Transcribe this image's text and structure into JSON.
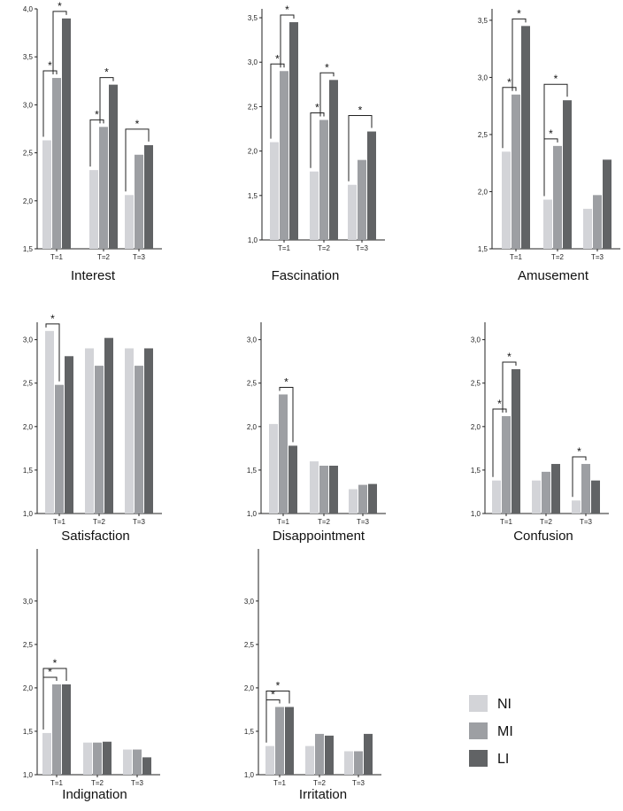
{
  "colors": {
    "NI": "#d3d4d8",
    "MI": "#9d9fa3",
    "LI": "#616365"
  },
  "chart_data": [
    {
      "type": "bar",
      "title": "Interest",
      "categories": [
        "T=1",
        "T=2",
        "T=3"
      ],
      "ylim": [
        1.5,
        4.0
      ],
      "ytick_values": [
        1.5,
        2.0,
        2.5,
        3.0,
        3.5,
        4.0
      ],
      "ytick_labels": [
        "1,5",
        "2,0",
        "2,5",
        "3,0",
        "3,5",
        "4,0"
      ],
      "series": [
        {
          "name": "NI",
          "values": [
            2.63,
            2.32,
            2.06
          ]
        },
        {
          "name": "MI",
          "values": [
            3.28,
            2.77,
            2.48
          ]
        },
        {
          "name": "LI",
          "values": [
            3.9,
            3.21,
            2.58
          ]
        }
      ],
      "significance": [
        {
          "group": 0,
          "from": 0,
          "to": 1,
          "label": "*"
        },
        {
          "group": 0,
          "from": 1,
          "to": 2,
          "label": "*"
        },
        {
          "group": 1,
          "from": 0,
          "to": 1,
          "label": "*"
        },
        {
          "group": 1,
          "from": 1,
          "to": 2,
          "label": "*"
        },
        {
          "group": 2,
          "from": 0,
          "to": 2,
          "label": "*"
        }
      ]
    },
    {
      "type": "bar",
      "title": "Fascination",
      "categories": [
        "T=1",
        "T=2",
        "T=3"
      ],
      "ylim": [
        1.0,
        3.6
      ],
      "ytick_values": [
        1.0,
        1.5,
        2.0,
        2.5,
        3.0,
        3.5
      ],
      "ytick_labels": [
        "1,0",
        "1,5",
        "2,0",
        "2,5",
        "3,0",
        "3,5"
      ],
      "series": [
        {
          "name": "NI",
          "values": [
            2.1,
            1.77,
            1.62
          ]
        },
        {
          "name": "MI",
          "values": [
            2.9,
            2.35,
            1.9
          ]
        },
        {
          "name": "LI",
          "values": [
            3.45,
            2.8,
            2.22
          ]
        }
      ],
      "significance": [
        {
          "group": 0,
          "from": 0,
          "to": 1,
          "label": "*"
        },
        {
          "group": 0,
          "from": 1,
          "to": 2,
          "label": "*"
        },
        {
          "group": 1,
          "from": 0,
          "to": 1,
          "label": "*"
        },
        {
          "group": 1,
          "from": 1,
          "to": 2,
          "label": "*"
        },
        {
          "group": 2,
          "from": 0,
          "to": 2,
          "label": "*"
        }
      ]
    },
    {
      "type": "bar",
      "title": "Amusement",
      "categories": [
        "T=1",
        "T=2",
        "T=3"
      ],
      "ylim": [
        1.5,
        3.6
      ],
      "ytick_values": [
        1.5,
        2.0,
        2.5,
        3.0,
        3.5
      ],
      "ytick_labels": [
        "1,5",
        "2,0",
        "2,5",
        "3,0",
        "3,5"
      ],
      "series": [
        {
          "name": "NI",
          "values": [
            2.35,
            1.93,
            1.85
          ]
        },
        {
          "name": "MI",
          "values": [
            2.85,
            2.4,
            1.97
          ]
        },
        {
          "name": "LI",
          "values": [
            3.45,
            2.8,
            2.28
          ]
        }
      ],
      "significance": [
        {
          "group": 0,
          "from": 0,
          "to": 1,
          "label": "*"
        },
        {
          "group": 0,
          "from": 1,
          "to": 2,
          "label": "*"
        },
        {
          "group": 1,
          "from": 0,
          "to": 1,
          "label": "*"
        },
        {
          "group": 1,
          "from": 0,
          "to": 2,
          "label": "*"
        }
      ]
    },
    {
      "type": "bar",
      "title": "Satisfaction",
      "categories": [
        "T=1",
        "T=2",
        "T=3"
      ],
      "ylim": [
        1.0,
        3.2
      ],
      "ytick_values": [
        1.0,
        1.5,
        2.0,
        2.5,
        3.0
      ],
      "ytick_labels": [
        "1,0",
        "1,5",
        "2,0",
        "2,5",
        "3,0"
      ],
      "series": [
        {
          "name": "NI",
          "values": [
            3.1,
            2.9,
            2.9
          ]
        },
        {
          "name": "MI",
          "values": [
            2.48,
            2.7,
            2.7
          ]
        },
        {
          "name": "LI",
          "values": [
            2.81,
            3.02,
            2.9
          ]
        }
      ],
      "significance": [
        {
          "group": 0,
          "from": 0,
          "to": 1,
          "label": "*"
        }
      ]
    },
    {
      "type": "bar",
      "title": "Disappointment",
      "categories": [
        "T=1",
        "T=2",
        "T=3"
      ],
      "ylim": [
        1.0,
        3.2
      ],
      "ytick_values": [
        1.0,
        1.5,
        2.0,
        2.5,
        3.0
      ],
      "ytick_labels": [
        "1,0",
        "1,5",
        "2,0",
        "2,5",
        "3,0"
      ],
      "series": [
        {
          "name": "NI",
          "values": [
            2.03,
            1.6,
            1.28
          ]
        },
        {
          "name": "MI",
          "values": [
            2.37,
            1.55,
            1.33
          ]
        },
        {
          "name": "LI",
          "values": [
            1.78,
            1.55,
            1.34
          ]
        }
      ],
      "significance": [
        {
          "group": 0,
          "from": 1,
          "to": 2,
          "label": "*"
        }
      ]
    },
    {
      "type": "bar",
      "title": "Confusion",
      "categories": [
        "T=1",
        "T=2",
        "T=3"
      ],
      "ylim": [
        1.0,
        3.2
      ],
      "ytick_values": [
        1.0,
        1.5,
        2.0,
        2.5,
        3.0
      ],
      "ytick_labels": [
        "1,0",
        "1,5",
        "2,0",
        "2,5",
        "3,0"
      ],
      "series": [
        {
          "name": "NI",
          "values": [
            1.38,
            1.38,
            1.15
          ]
        },
        {
          "name": "MI",
          "values": [
            2.12,
            1.48,
            1.57
          ]
        },
        {
          "name": "LI",
          "values": [
            2.66,
            1.57,
            1.38
          ]
        }
      ],
      "significance": [
        {
          "group": 0,
          "from": 0,
          "to": 1,
          "label": "*"
        },
        {
          "group": 0,
          "from": 1,
          "to": 2,
          "label": "*"
        },
        {
          "group": 2,
          "from": 0,
          "to": 1,
          "label": "*"
        }
      ]
    },
    {
      "type": "bar",
      "title": "Indignation",
      "categories": [
        "T=1",
        "T=2",
        "T=3"
      ],
      "ylim": [
        1.0,
        3.6
      ],
      "ytick_values": [
        1.0,
        1.5,
        2.0,
        2.5,
        3.0
      ],
      "ytick_labels": [
        "1,0",
        "1,5",
        "2,0",
        "2,5",
        "3,0"
      ],
      "series": [
        {
          "name": "NI",
          "values": [
            1.48,
            1.37,
            1.29
          ]
        },
        {
          "name": "MI",
          "values": [
            2.04,
            1.37,
            1.29
          ]
        },
        {
          "name": "LI",
          "values": [
            2.04,
            1.38,
            1.2
          ]
        }
      ],
      "significance": [
        {
          "group": 0,
          "from": 0,
          "to": 1,
          "label": "*"
        },
        {
          "group": 0,
          "from": 0,
          "to": 2,
          "label": "*"
        }
      ]
    },
    {
      "type": "bar",
      "title": "Irritation",
      "categories": [
        "T=1",
        "T=2",
        "T=3"
      ],
      "ylim": [
        1.0,
        3.6
      ],
      "ytick_values": [
        1.0,
        1.5,
        2.0,
        2.5,
        3.0
      ],
      "ytick_labels": [
        "1,0",
        "1,5",
        "2,0",
        "2,5",
        "3,0"
      ],
      "series": [
        {
          "name": "NI",
          "values": [
            1.33,
            1.33,
            1.27
          ]
        },
        {
          "name": "MI",
          "values": [
            1.78,
            1.47,
            1.27
          ]
        },
        {
          "name": "LI",
          "values": [
            1.78,
            1.45,
            1.47
          ]
        }
      ],
      "significance": [
        {
          "group": 0,
          "from": 0,
          "to": 1,
          "label": "*"
        },
        {
          "group": 0,
          "from": 0,
          "to": 2,
          "label": "*"
        }
      ]
    }
  ],
  "legend": [
    {
      "key": "NI",
      "label": "NI"
    },
    {
      "key": "MI",
      "label": "MI"
    },
    {
      "key": "LI",
      "label": "LI"
    }
  ]
}
